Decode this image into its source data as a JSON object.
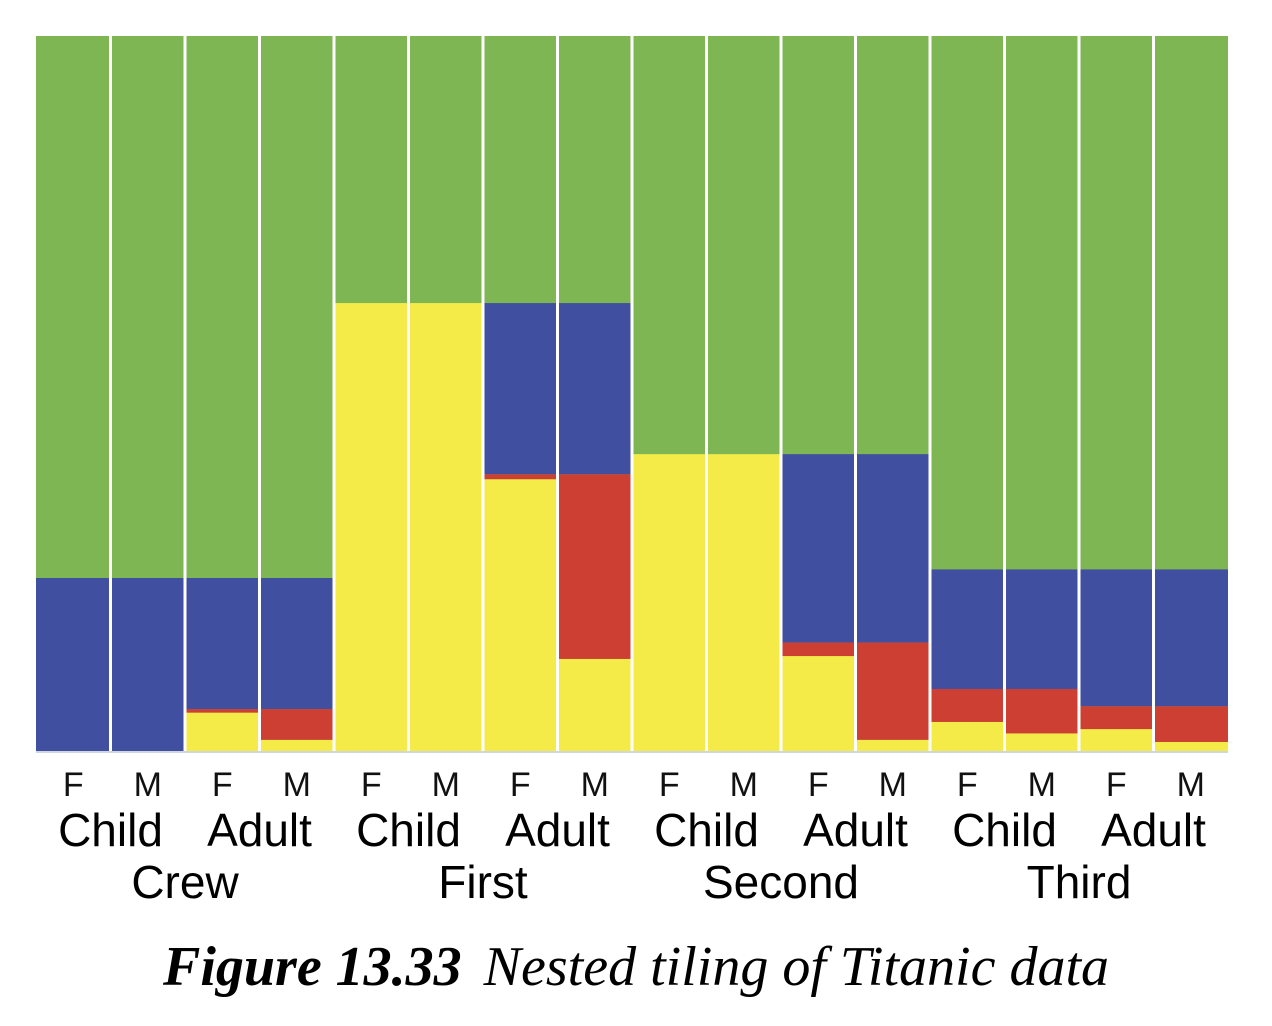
{
  "caption": {
    "number": "Figure 13.33",
    "text": "Nested tiling of Titanic data"
  },
  "chart_data": {
    "type": "bar",
    "stacked": true,
    "grid": false,
    "legend": "none",
    "ylim": [
      0,
      1
    ],
    "xlabel": "",
    "ylabel": "",
    "classes": [
      "Crew",
      "First",
      "Second",
      "Third"
    ],
    "ages": [
      "Child",
      "Adult"
    ],
    "sexes": [
      "F",
      "M"
    ],
    "class_height": {
      "Crew": 0.243,
      "First": 0.627,
      "Second": 0.416,
      "Third": 0.255
    },
    "colors": {
      "empty": "#7db653",
      "blue": "#414fa0",
      "red": "#cd3f33",
      "yellow": "#f4eb49",
      "divider": "#ffffff"
    },
    "bars": [
      {
        "class": "Crew",
        "age": "Child",
        "sex": "F",
        "yellow": 0.0,
        "red": 0.0,
        "blue": 0.243
      },
      {
        "class": "Crew",
        "age": "Child",
        "sex": "M",
        "yellow": 0.0,
        "red": 0.0,
        "blue": 0.243
      },
      {
        "class": "Crew",
        "age": "Adult",
        "sex": "F",
        "yellow": 0.055,
        "red": 0.005,
        "blue": 0.183
      },
      {
        "class": "Crew",
        "age": "Adult",
        "sex": "M",
        "yellow": 0.017,
        "red": 0.043,
        "blue": 0.183
      },
      {
        "class": "First",
        "age": "Child",
        "sex": "F",
        "yellow": 0.627,
        "red": 0.0,
        "blue": 0.0
      },
      {
        "class": "First",
        "age": "Child",
        "sex": "M",
        "yellow": 0.627,
        "red": 0.0,
        "blue": 0.0
      },
      {
        "class": "First",
        "age": "Adult",
        "sex": "F",
        "yellow": 0.381,
        "red": 0.007,
        "blue": 0.239
      },
      {
        "class": "First",
        "age": "Adult",
        "sex": "M",
        "yellow": 0.13,
        "red": 0.258,
        "blue": 0.239
      },
      {
        "class": "Second",
        "age": "Child",
        "sex": "F",
        "yellow": 0.416,
        "red": 0.0,
        "blue": 0.0
      },
      {
        "class": "Second",
        "age": "Child",
        "sex": "M",
        "yellow": 0.416,
        "red": 0.0,
        "blue": 0.0
      },
      {
        "class": "Second",
        "age": "Adult",
        "sex": "F",
        "yellow": 0.134,
        "red": 0.019,
        "blue": 0.263
      },
      {
        "class": "Second",
        "age": "Adult",
        "sex": "M",
        "yellow": 0.017,
        "red": 0.136,
        "blue": 0.263
      },
      {
        "class": "Third",
        "age": "Child",
        "sex": "F",
        "yellow": 0.042,
        "red": 0.046,
        "blue": 0.167
      },
      {
        "class": "Third",
        "age": "Child",
        "sex": "M",
        "yellow": 0.026,
        "red": 0.062,
        "blue": 0.167
      },
      {
        "class": "Third",
        "age": "Adult",
        "sex": "F",
        "yellow": 0.032,
        "red": 0.032,
        "blue": 0.191
      },
      {
        "class": "Third",
        "age": "Adult",
        "sex": "M",
        "yellow": 0.014,
        "red": 0.05,
        "blue": 0.191
      }
    ]
  }
}
